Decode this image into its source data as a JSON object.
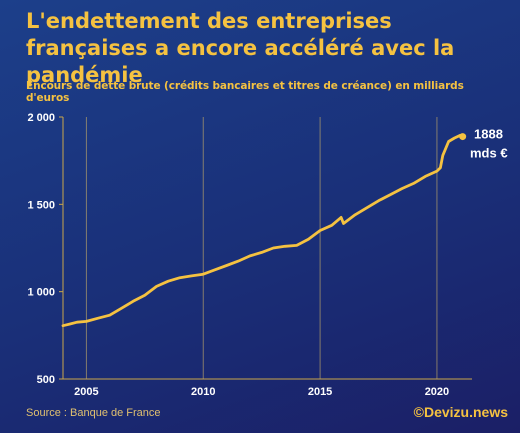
{
  "header": {
    "title": "L'endettement des entreprises françaises a encore accéléré avec la pandémie",
    "subtitle": "Encours de dette brute (crédits bancaires et titres de créance) en milliards d'euros"
  },
  "footer": {
    "source": "Source : Banque de France",
    "brand": "©Devizu.news"
  },
  "chart_data": {
    "type": "line",
    "title": "L'endettement des entreprises françaises a encore accéléré avec la pandémie",
    "subtitle": "Encours de dette brute (crédits bancaires et titres de créance) en milliards d'euros",
    "xlabel": "",
    "ylabel": "",
    "xlim": [
      2004.0,
      2021.5
    ],
    "ylim": [
      500,
      2000
    ],
    "x_ticks": [
      2005,
      2010,
      2015,
      2020
    ],
    "x_tick_labels": [
      "2005",
      "2010",
      "2015",
      "2020"
    ],
    "y_ticks": [
      500,
      1000,
      1500,
      2000
    ],
    "y_tick_labels": [
      "500",
      "1 000",
      "1 500",
      "2 000"
    ],
    "vertical_gridlines": true,
    "line_color": "#f5c241",
    "x": [
      2004.0,
      2004.3,
      2004.6,
      2005.0,
      2005.5,
      2006.0,
      2006.5,
      2007.0,
      2007.5,
      2008.0,
      2008.5,
      2009.0,
      2009.5,
      2010.0,
      2010.5,
      2011.0,
      2011.5,
      2012.0,
      2012.5,
      2013.0,
      2013.5,
      2014.0,
      2014.5,
      2015.0,
      2015.5,
      2015.9,
      2016.0,
      2016.5,
      2017.0,
      2017.5,
      2018.0,
      2018.5,
      2019.0,
      2019.5,
      2020.0,
      2020.15,
      2020.25,
      2020.5,
      2020.75,
      2021.0,
      2021.1
    ],
    "y": [
      805,
      815,
      825,
      830,
      848,
      865,
      905,
      945,
      980,
      1030,
      1060,
      1080,
      1090,
      1100,
      1125,
      1150,
      1175,
      1205,
      1225,
      1250,
      1260,
      1265,
      1300,
      1350,
      1380,
      1425,
      1390,
      1440,
      1480,
      1520,
      1555,
      1590,
      1620,
      1660,
      1690,
      1710,
      1780,
      1860,
      1880,
      1895,
      1888
    ],
    "annotation": {
      "text_line1": "1888",
      "text_line2": "mds €",
      "x": 2021.1,
      "y": 1888
    }
  }
}
